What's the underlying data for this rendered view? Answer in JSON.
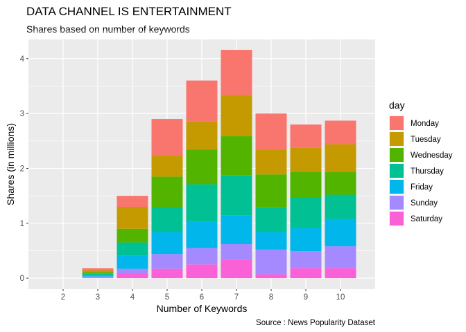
{
  "chart_data": {
    "type": "bar",
    "stacked": true,
    "title": "DATA CHANNEL IS ENTERTAINMENT",
    "subtitle": "Shares based on number of keywords",
    "xlabel": "Number of Keywords",
    "ylabel": "Shares (in millions)",
    "caption": "Source : News Popularity Dataset",
    "legend_title": "day",
    "legend_position": "right",
    "grid": true,
    "categories": [
      "2",
      "3",
      "4",
      "5",
      "6",
      "7",
      "8",
      "9",
      "10"
    ],
    "x_range": [
      1,
      11
    ],
    "ylim": [
      -0.2,
      4.35
    ],
    "yticks": [
      0,
      1,
      2,
      3,
      4
    ],
    "stack_order_bottom_to_top": [
      "Saturday",
      "Sunday",
      "Friday",
      "Thursday",
      "Wednesday",
      "Tuesday",
      "Monday"
    ],
    "series": [
      {
        "name": "Monday",
        "color": "#F8766D",
        "values": [
          0,
          0.04,
          0.2,
          0.66,
          0.74,
          0.82,
          0.65,
          0.42,
          0.43
        ]
      },
      {
        "name": "Tuesday",
        "color": "#C49A00",
        "values": [
          0,
          0.03,
          0.4,
          0.39,
          0.52,
          0.75,
          0.46,
          0.44,
          0.51
        ]
      },
      {
        "name": "Wednesday",
        "color": "#53B400",
        "values": [
          0,
          0.03,
          0.25,
          0.55,
          0.63,
          0.72,
          0.6,
          0.47,
          0.41
        ]
      },
      {
        "name": "Thursday",
        "color": "#00C094",
        "values": [
          0,
          0.03,
          0.24,
          0.46,
          0.68,
          0.73,
          0.45,
          0.56,
          0.44
        ]
      },
      {
        "name": "Friday",
        "color": "#00B6EB",
        "values": [
          0,
          0.02,
          0.24,
          0.4,
          0.48,
          0.52,
          0.32,
          0.42,
          0.5
        ]
      },
      {
        "name": "Sunday",
        "color": "#A58AFF",
        "values": [
          0,
          0.02,
          0.08,
          0.27,
          0.3,
          0.28,
          0.45,
          0.31,
          0.4
        ]
      },
      {
        "name": "Saturday",
        "color": "#FB61D7",
        "values": [
          0,
          0.01,
          0.09,
          0.17,
          0.25,
          0.34,
          0.07,
          0.18,
          0.18
        ]
      }
    ]
  }
}
